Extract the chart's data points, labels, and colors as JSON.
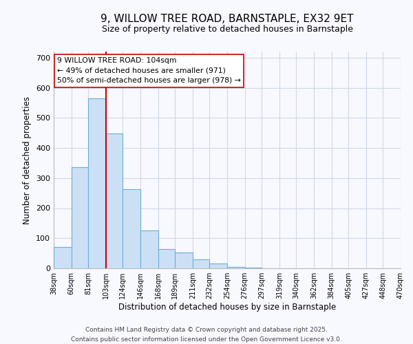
{
  "title": "9, WILLOW TREE ROAD, BARNSTAPLE, EX32 9ET",
  "subtitle": "Size of property relative to detached houses in Barnstaple",
  "xlabel": "Distribution of detached houses by size in Barnstaple",
  "ylabel": "Number of detached properties",
  "bar_edges": [
    38,
    60,
    81,
    103,
    124,
    146,
    168,
    189,
    211,
    232,
    254,
    276,
    297,
    319,
    340,
    362,
    384,
    405,
    427,
    448,
    470
  ],
  "bar_heights": [
    70,
    335,
    565,
    447,
    262,
    125,
    65,
    52,
    30,
    17,
    5,
    2,
    1,
    0,
    0,
    0,
    0,
    0,
    0,
    0
  ],
  "bar_color": "#cce0f5",
  "bar_edge_color": "#6aaed6",
  "vline_x": 103,
  "vline_color": "#cc0000",
  "annotation_line1": "9 WILLOW TREE ROAD: 104sqm",
  "annotation_line2": "← 49% of detached houses are smaller (971)",
  "annotation_line3": "50% of semi-detached houses are larger (978) →",
  "annotation_box_edge_color": "#cc0000",
  "annotation_box_face_color": "#ffffff",
  "ylim": [
    0,
    720
  ],
  "yticks": [
    0,
    100,
    200,
    300,
    400,
    500,
    600,
    700
  ],
  "background_color": "#f8f8ff",
  "grid_color": "#d0d8e8",
  "tick_labels": [
    "38sqm",
    "60sqm",
    "81sqm",
    "103sqm",
    "124sqm",
    "146sqm",
    "168sqm",
    "189sqm",
    "211sqm",
    "232sqm",
    "254sqm",
    "276sqm",
    "297sqm",
    "319sqm",
    "340sqm",
    "362sqm",
    "384sqm",
    "405sqm",
    "427sqm",
    "448sqm",
    "470sqm"
  ],
  "footer_line1": "Contains HM Land Registry data © Crown copyright and database right 2025.",
  "footer_line2": "Contains public sector information licensed under the Open Government Licence v3.0."
}
